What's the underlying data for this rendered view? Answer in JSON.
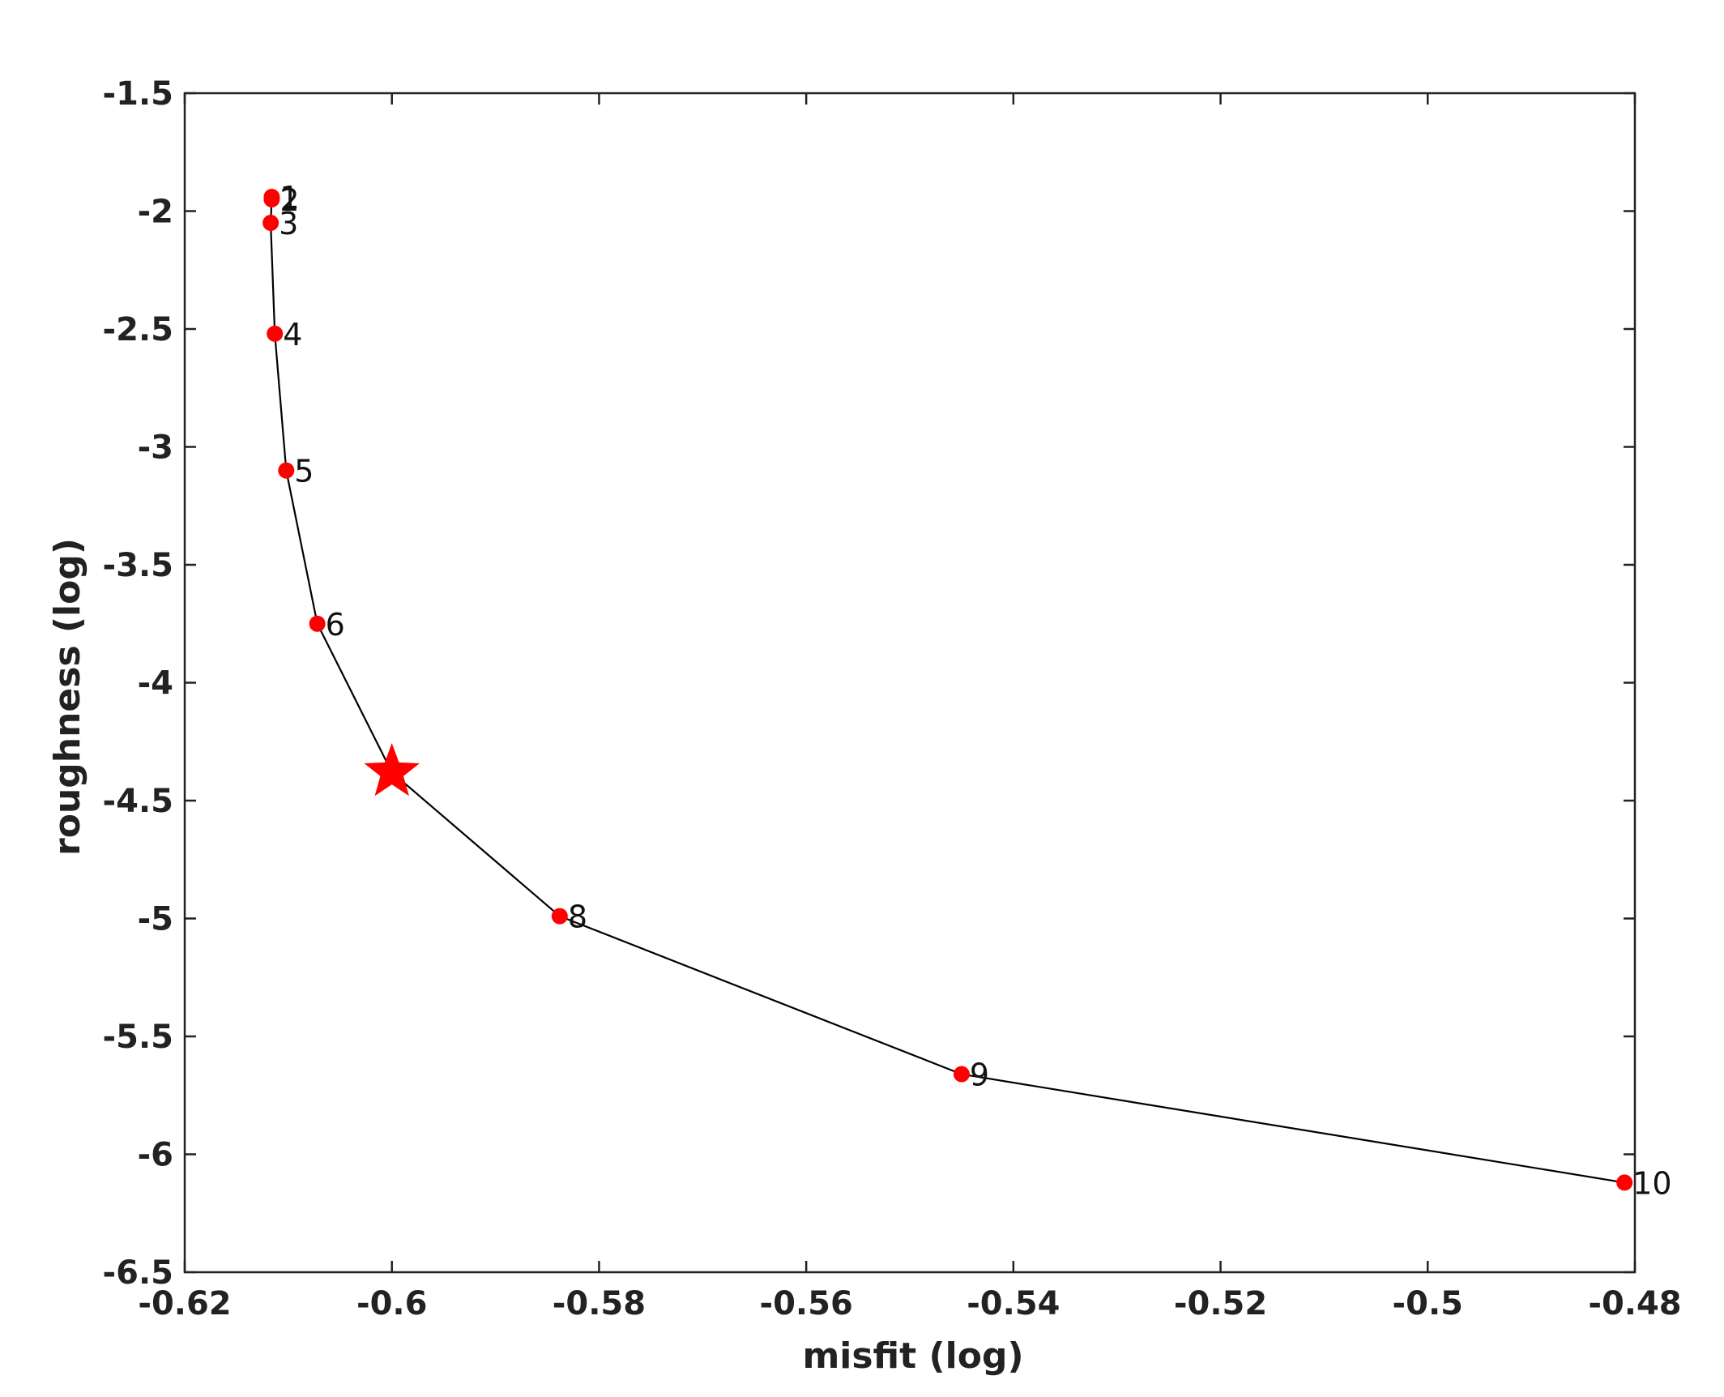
{
  "chart_data": {
    "type": "line",
    "title": "",
    "xlabel": "misfit (log)",
    "ylabel": "roughness (log)",
    "xlim": [
      -0.62,
      -0.48
    ],
    "ylim": [
      -6.5,
      -1.5
    ],
    "grid": false,
    "xticks": [
      -0.62,
      -0.6,
      -0.58,
      -0.56,
      -0.54,
      -0.52,
      -0.5,
      -0.48
    ],
    "xtick_labels": [
      "-0.62",
      "-0.6",
      "-0.58",
      "-0.56",
      "-0.54",
      "-0.52",
      "-0.5",
      "-0.48"
    ],
    "yticks": [
      -1.5,
      -2,
      -2.5,
      -3,
      -3.5,
      -4,
      -4.5,
      -5,
      -5.5,
      -6,
      -6.5
    ],
    "ytick_labels": [
      "-1.5",
      "-2",
      "-2.5",
      "-3",
      "-3.5",
      "-4",
      "-4.5",
      "-5",
      "-5.5",
      "-6",
      "-6.5"
    ],
    "series": [
      {
        "line_color": "#000000",
        "marker_color": "#ff0000",
        "points": [
          {
            "label": "1",
            "x": -0.6116,
            "y": -1.94
          },
          {
            "label": "2",
            "x": -0.6116,
            "y": -1.95
          },
          {
            "label": "3",
            "x": -0.6117,
            "y": -2.05
          },
          {
            "label": "4",
            "x": -0.6113,
            "y": -2.52
          },
          {
            "label": "5",
            "x": -0.6102,
            "y": -3.1
          },
          {
            "label": "6",
            "x": -0.6072,
            "y": -3.75
          },
          {
            "label": "",
            "x": -0.6,
            "y": -4.38
          },
          {
            "label": "8",
            "x": -0.5838,
            "y": -4.99
          },
          {
            "label": "9",
            "x": -0.545,
            "y": -5.66
          },
          {
            "label": "10",
            "x": -0.481,
            "y": -6.12
          }
        ]
      }
    ],
    "highlight": {
      "shape": "star",
      "color": "#ff0000",
      "x": -0.6,
      "y": -4.38
    }
  }
}
